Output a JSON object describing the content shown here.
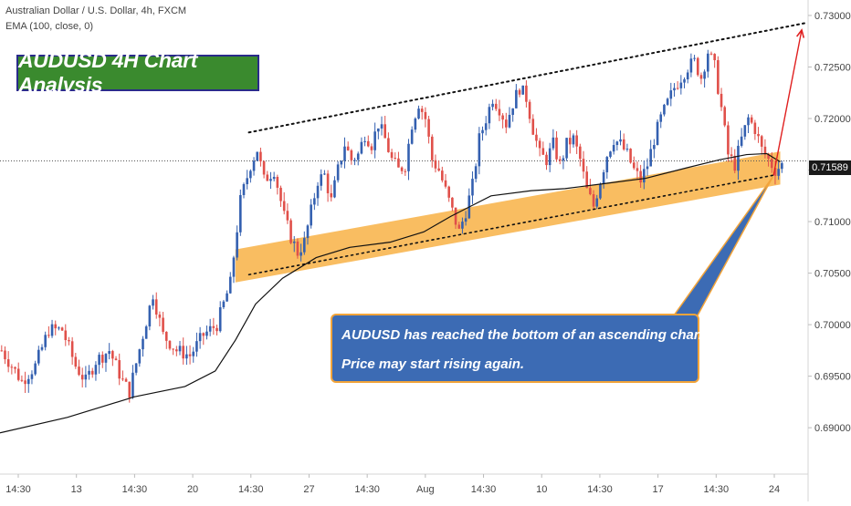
{
  "legend": {
    "symbol_line": "Australian Dollar / U.S. Dollar, 4h, FXCM",
    "indicator_line": "EMA (100, close, 0)"
  },
  "title_box": {
    "text": "AUDUSD 4H Chart Analysis"
  },
  "callout": {
    "line1": "AUDUSD has reached the bottom of an ascending channel.",
    "line2": "Price may start rising again."
  },
  "current_price": {
    "label": "0.71589",
    "value": 0.71589
  },
  "colors": {
    "up": "#3460b0",
    "down": "#e0504a",
    "ema": "#111111",
    "support_band": "#f8b245",
    "channel": "#111111",
    "arrow": "#e02020"
  },
  "chart_data": {
    "type": "candlestick",
    "instrument": "Australian Dollar / U.S. Dollar, 4h, FXCM",
    "ylim": [
      0.6855,
      0.7315
    ],
    "y_ticks": [
      "0.73000",
      "0.72500",
      "0.72000",
      "0.71500",
      "0.71000",
      "0.70500",
      "0.70000",
      "0.69500",
      "0.69000"
    ],
    "x_ticks": [
      "14:30",
      "13",
      "14:30",
      "20",
      "14:30",
      "27",
      "14:30",
      "Aug",
      "14:30",
      "10",
      "14:30",
      "17",
      "14:30",
      "24"
    ],
    "close_path": [
      [
        0,
        0.6975
      ],
      [
        6,
        0.6945
      ],
      [
        10,
        0.696
      ],
      [
        14,
        0.6995
      ],
      [
        18,
        0.6995
      ],
      [
        22,
        0.696
      ],
      [
        25,
        0.6945
      ],
      [
        28,
        0.6965
      ],
      [
        32,
        0.6975
      ],
      [
        36,
        0.6945
      ],
      [
        38,
        0.6935
      ],
      [
        42,
        0.699
      ],
      [
        45,
        0.703
      ],
      [
        48,
        0.699
      ],
      [
        52,
        0.6975
      ],
      [
        56,
        0.697
      ],
      [
        60,
        0.699
      ],
      [
        64,
        0.7
      ],
      [
        68,
        0.704
      ],
      [
        71,
        0.712
      ],
      [
        74,
        0.7155
      ],
      [
        76,
        0.717
      ],
      [
        78,
        0.714
      ],
      [
        81,
        0.715
      ],
      [
        84,
        0.7105
      ],
      [
        86,
        0.7085
      ],
      [
        88,
        0.707
      ],
      [
        90,
        0.708
      ],
      [
        92,
        0.711
      ],
      [
        94,
        0.714
      ],
      [
        96,
        0.7145
      ],
      [
        98,
        0.712
      ],
      [
        100,
        0.715
      ],
      [
        102,
        0.7175
      ],
      [
        104,
        0.716
      ],
      [
        106,
        0.7165
      ],
      [
        108,
        0.7185
      ],
      [
        110,
        0.7175
      ],
      [
        112,
        0.7195
      ],
      [
        114,
        0.718
      ],
      [
        116,
        0.716
      ],
      [
        118,
        0.715
      ],
      [
        120,
        0.7155
      ],
      [
        122,
        0.7195
      ],
      [
        124,
        0.7215
      ],
      [
        126,
        0.72
      ],
      [
        128,
        0.716
      ],
      [
        130,
        0.715
      ],
      [
        132,
        0.713
      ],
      [
        134,
        0.711
      ],
      [
        136,
        0.709
      ],
      [
        138,
        0.711
      ],
      [
        140,
        0.7135
      ],
      [
        142,
        0.718
      ],
      [
        144,
        0.72
      ],
      [
        146,
        0.722
      ],
      [
        148,
        0.721
      ],
      [
        150,
        0.7195
      ],
      [
        152,
        0.7215
      ],
      [
        154,
        0.723
      ],
      [
        156,
        0.722
      ],
      [
        158,
        0.719
      ],
      [
        160,
        0.7165
      ],
      [
        162,
        0.716
      ],
      [
        164,
        0.7175
      ],
      [
        166,
        0.7155
      ],
      [
        168,
        0.7175
      ],
      [
        170,
        0.718
      ],
      [
        172,
        0.716
      ],
      [
        174,
        0.713
      ],
      [
        176,
        0.7115
      ],
      [
        178,
        0.714
      ],
      [
        180,
        0.7165
      ],
      [
        182,
        0.718
      ],
      [
        184,
        0.7175
      ],
      [
        186,
        0.7165
      ],
      [
        188,
        0.715
      ],
      [
        190,
        0.714
      ],
      [
        192,
        0.7155
      ],
      [
        194,
        0.718
      ],
      [
        196,
        0.72
      ],
      [
        198,
        0.7215
      ],
      [
        200,
        0.723
      ],
      [
        202,
        0.724
      ],
      [
        204,
        0.725
      ],
      [
        206,
        0.7255
      ],
      [
        208,
        0.724
      ],
      [
        210,
        0.7265
      ],
      [
        212,
        0.725
      ],
      [
        214,
        0.721
      ],
      [
        216,
        0.7165
      ],
      [
        218,
        0.7155
      ],
      [
        220,
        0.718
      ],
      [
        222,
        0.72
      ],
      [
        224,
        0.719
      ],
      [
        226,
        0.717
      ],
      [
        228,
        0.716
      ],
      [
        230,
        0.715
      ],
      [
        232,
        0.7155
      ]
    ],
    "ema_100": [
      [
        0,
        0.6895
      ],
      [
        20,
        0.691
      ],
      [
        40,
        0.693
      ],
      [
        55,
        0.694
      ],
      [
        64,
        0.6955
      ],
      [
        70,
        0.6985
      ],
      [
        76,
        0.702
      ],
      [
        84,
        0.7045
      ],
      [
        94,
        0.7065
      ],
      [
        104,
        0.7075
      ],
      [
        116,
        0.708
      ],
      [
        126,
        0.709
      ],
      [
        134,
        0.7105
      ],
      [
        146,
        0.7125
      ],
      [
        158,
        0.713
      ],
      [
        168,
        0.7132
      ],
      [
        180,
        0.7137
      ],
      [
        192,
        0.7142
      ],
      [
        204,
        0.7152
      ],
      [
        214,
        0.716
      ],
      [
        222,
        0.7165
      ],
      [
        228,
        0.7166
      ],
      [
        232,
        0.7158
      ]
    ],
    "channel_upper": [
      [
        74,
        0.71865
      ],
      [
        240,
        0.7293
      ]
    ],
    "channel_lower": [
      [
        74,
        0.70485
      ],
      [
        230,
        0.7145
      ]
    ],
    "support_band": {
      "from": [
        [
          70,
          0.7057
        ],
        [
          232,
          0.7152
        ]
      ],
      "thickness": 0.0016
    },
    "projection_arrow": [
      [
        230,
        0.7145
      ],
      [
        240,
        0.7293
      ]
    ],
    "current_price": 0.71589
  }
}
